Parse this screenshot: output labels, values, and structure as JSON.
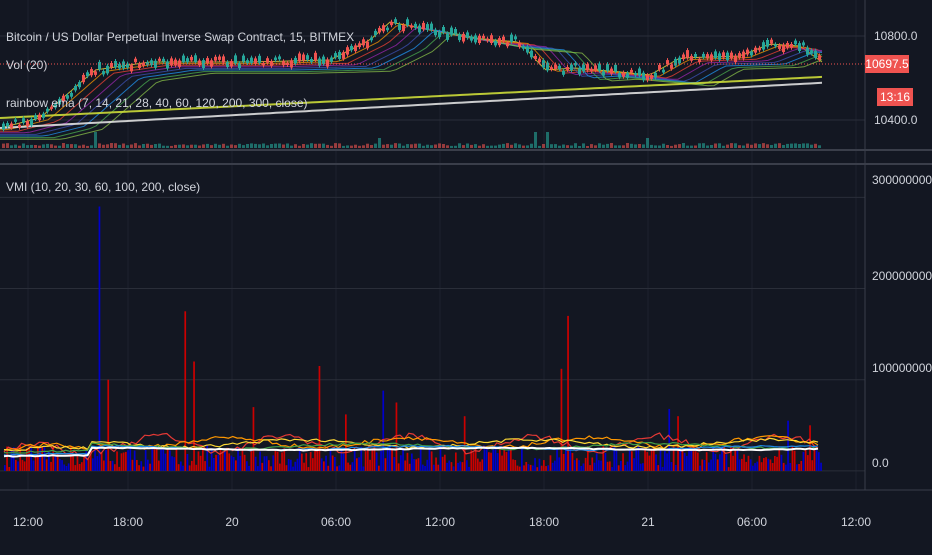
{
  "header": {
    "symbol_title": "Bitcoin / US Dollar Perpetual Inverse Swap Contract, 15, BITMEX",
    "vol_label": "Vol (20)",
    "rainbow_label": "rainbow ema (7, 14, 21, 28, 40, 60, 120, 200, 300, close)",
    "vmi_label": "VMI (10, 20, 30, 60, 100, 200, close)"
  },
  "price_pane": {
    "ticks": [
      "10800.0",
      "10400.0"
    ],
    "last_price": "10697.5",
    "countdown": "13:16",
    "colors": {
      "up": "#26a69a",
      "down": "#ef5350",
      "last_line": "#ef5350"
    }
  },
  "chart_data": {
    "type": "bar",
    "title": "VMI (10, 20, 30, 60, 100, 200, close)",
    "ylim": [
      -10000000,
      330000000
    ],
    "y_ticks": [
      "300000000.0",
      "200000000.0",
      "100000000.0",
      "0.0"
    ],
    "x_ticks": [
      "12:00",
      "18:00",
      "20",
      "06:00",
      "12:00",
      "18:00",
      "21",
      "06:00",
      "12:00"
    ],
    "colors": {
      "up_bar": "#0000cc",
      "down_bar": "#cc0000"
    },
    "spikes": [
      {
        "index": 43,
        "value": 290000000,
        "color": "blue"
      },
      {
        "index": 47,
        "value": 100000000,
        "color": "red"
      },
      {
        "index": 82,
        "value": 175000000,
        "color": "red"
      },
      {
        "index": 86,
        "value": 120000000,
        "color": "red"
      },
      {
        "index": 113,
        "value": 70000000,
        "color": "red"
      },
      {
        "index": 143,
        "value": 115000000,
        "color": "red"
      },
      {
        "index": 155,
        "value": 62000000,
        "color": "red"
      },
      {
        "index": 172,
        "value": 88000000,
        "color": "blue"
      },
      {
        "index": 178,
        "value": 75000000,
        "color": "red"
      },
      {
        "index": 209,
        "value": 60000000,
        "color": "red"
      },
      {
        "index": 253,
        "value": 112000000,
        "color": "red"
      },
      {
        "index": 256,
        "value": 170000000,
        "color": "red"
      },
      {
        "index": 302,
        "value": 68000000,
        "color": "blue"
      },
      {
        "index": 306,
        "value": 60000000,
        "color": "red"
      },
      {
        "index": 356,
        "value": 55000000,
        "color": "blue"
      },
      {
        "index": 366,
        "value": 50000000,
        "color": "red"
      }
    ]
  }
}
